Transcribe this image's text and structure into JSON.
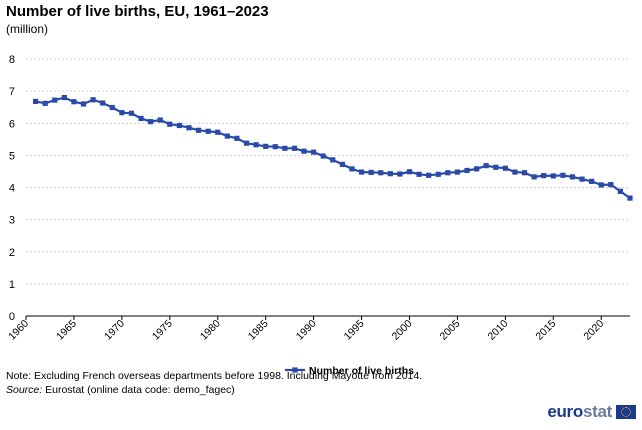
{
  "title": "Number of live births, EU, 1961–2023",
  "subtitle": "(million)",
  "note": "Note: Excluding French overseas departments before 1998. Including Mayotte from 2014.",
  "source_label": "Source:",
  "source_text": " Eurostat (online data code: demo_fagec)",
  "logo": {
    "text_main": "euro",
    "text_dim": "stat"
  },
  "colors": {
    "series": "#2a4aa8",
    "grid": "#d0d0d0",
    "axis": "#000000"
  },
  "chart_data": {
    "type": "line",
    "title": "Number of live births, EU, 1961–2023",
    "ylabel": "(million)",
    "xlabel": "",
    "ylim": [
      0,
      8
    ],
    "yticks": [
      0,
      1,
      2,
      3,
      4,
      5,
      6,
      7,
      8
    ],
    "xlim": [
      1960,
      2023
    ],
    "xticks": [
      1960,
      1965,
      1970,
      1975,
      1980,
      1985,
      1990,
      1995,
      2000,
      2005,
      2010,
      2015,
      2020
    ],
    "grid": "horizontal",
    "legend": "bottom-center",
    "x": [
      1961,
      1962,
      1963,
      1964,
      1965,
      1966,
      1967,
      1968,
      1969,
      1970,
      1971,
      1972,
      1973,
      1974,
      1975,
      1976,
      1977,
      1978,
      1979,
      1980,
      1981,
      1982,
      1983,
      1984,
      1985,
      1986,
      1987,
      1988,
      1989,
      1990,
      1991,
      1992,
      1993,
      1994,
      1995,
      1996,
      1997,
      1998,
      1999,
      2000,
      2001,
      2002,
      2003,
      2004,
      2005,
      2006,
      2007,
      2008,
      2009,
      2010,
      2011,
      2012,
      2013,
      2014,
      2015,
      2016,
      2017,
      2018,
      2019,
      2020,
      2021,
      2022,
      2023
    ],
    "series": [
      {
        "name": "Number of live births",
        "values": [
          6.68,
          6.62,
          6.72,
          6.8,
          6.67,
          6.6,
          6.73,
          6.63,
          6.49,
          6.33,
          6.31,
          6.15,
          6.05,
          6.1,
          5.97,
          5.93,
          5.86,
          5.78,
          5.75,
          5.72,
          5.6,
          5.53,
          5.38,
          5.33,
          5.28,
          5.27,
          5.22,
          5.22,
          5.13,
          5.1,
          4.98,
          4.86,
          4.72,
          4.58,
          4.48,
          4.47,
          4.46,
          4.43,
          4.42,
          4.49,
          4.41,
          4.38,
          4.41,
          4.46,
          4.48,
          4.53,
          4.58,
          4.68,
          4.63,
          4.6,
          4.48,
          4.46,
          4.33,
          4.37,
          4.36,
          4.38,
          4.33,
          4.26,
          4.19,
          4.08,
          4.09,
          3.88,
          3.67
        ]
      }
    ]
  }
}
